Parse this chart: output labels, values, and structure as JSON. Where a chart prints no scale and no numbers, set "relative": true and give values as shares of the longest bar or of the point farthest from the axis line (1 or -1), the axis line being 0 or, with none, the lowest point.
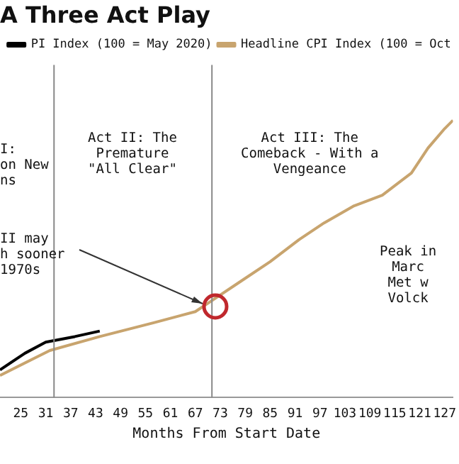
{
  "chart_data": {
    "type": "line",
    "title": "A Three Act Play",
    "xlabel": "Months From Start Date",
    "relative": true,
    "legend": "top",
    "marker": "none",
    "line_style": "solid",
    "xlim": [
      20,
      129
    ],
    "xticks": [
      25,
      31,
      37,
      43,
      49,
      55,
      61,
      67,
      73,
      79,
      85,
      91,
      97,
      103,
      109,
      115,
      121,
      127
    ],
    "series": [
      {
        "name": "PI Index (100 = May 2020)",
        "color": "#000000",
        "x": [
          20,
          26,
          31,
          38,
          44
        ],
        "values": [
          0.1,
          0.16,
          0.2,
          0.22,
          0.24
        ]
      },
      {
        "name": "Headline CPI Index (100 = Oct",
        "color": "#c8a46e",
        "x": [
          20,
          32,
          44,
          57,
          67,
          71,
          78,
          85,
          92,
          98,
          105,
          112,
          119,
          123,
          127,
          129
        ],
        "values": [
          0.08,
          0.17,
          0.22,
          0.27,
          0.31,
          0.35,
          0.42,
          0.49,
          0.57,
          0.63,
          0.69,
          0.73,
          0.81,
          0.9,
          0.97,
          1
        ]
      }
    ],
    "ref_lines": [
      {
        "axis": "x",
        "value": 33,
        "color": "#888888"
      },
      {
        "axis": "x",
        "value": 71,
        "color": "#888888"
      }
    ],
    "annotations": [
      "I:\non New\nns",
      "Act II: The\nPremature\n\"All Clear\"",
      "Act III: The\nComeback - With a\nVengeance",
      "II may\nh sooner\n1970s",
      "Peak in\nMarc\nMet w\nVolck"
    ]
  }
}
